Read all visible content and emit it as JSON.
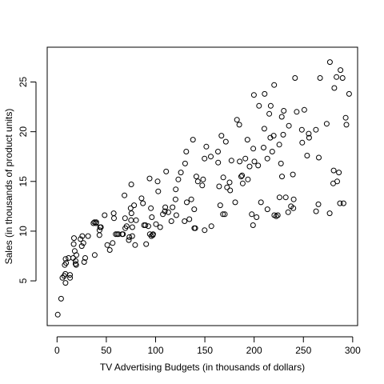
{
  "chart_data": {
    "type": "scatter",
    "title": "",
    "xlabel": "TV Advertising Budgets (in thousands of dollars)",
    "ylabel": "Sales (in thousands of product units)",
    "xlim": [
      -10,
      305
    ],
    "ylim": [
      0.5,
      28.5
    ],
    "x_ticks": [
      0,
      50,
      100,
      150,
      200,
      250,
      300
    ],
    "y_ticks": [
      5,
      10,
      15,
      20,
      25
    ],
    "grid": false,
    "legend": "none",
    "marker": "open-circle",
    "marker_color": "#000000",
    "points": [
      [
        0.7,
        1.6
      ],
      [
        4.1,
        3.2
      ],
      [
        5.4,
        5.3
      ],
      [
        7.3,
        5.5
      ],
      [
        8.4,
        5.7
      ],
      [
        8.6,
        4.8
      ],
      [
        8.7,
        7.2
      ],
      [
        7.8,
        6.6
      ],
      [
        11.7,
        7.3
      ],
      [
        13.1,
        5.6
      ],
      [
        13.2,
        5.3
      ],
      [
        16.9,
        8.7
      ],
      [
        17.2,
        9.3
      ],
      [
        17.9,
        8.0
      ],
      [
        18.7,
        6.7
      ],
      [
        18.8,
        7.0
      ],
      [
        19.4,
        6.6
      ],
      [
        19.6,
        7.6
      ],
      [
        23.8,
        9.2
      ],
      [
        25.1,
        8.5
      ],
      [
        25.6,
        9.5
      ],
      [
        26.8,
        8.8
      ],
      [
        27.5,
        6.9
      ],
      [
        28.6,
        7.3
      ],
      [
        31.5,
        9.5
      ],
      [
        36.9,
        10.8
      ],
      [
        38.0,
        10.9
      ],
      [
        38.2,
        7.6
      ],
      [
        39.5,
        10.8
      ],
      [
        43.0,
        9.6
      ],
      [
        43.1,
        10.1
      ],
      [
        43.7,
        10.4
      ],
      [
        44.5,
        10.4
      ],
      [
        48.3,
        11.6
      ],
      [
        53.5,
        8.1
      ],
      [
        57.5,
        11.8
      ],
      [
        59.6,
        9.7
      ],
      [
        62.3,
        9.7
      ],
      [
        66.1,
        9.7
      ],
      [
        66.9,
        9.7
      ],
      [
        68.4,
        13.6
      ],
      [
        69.0,
        11.3
      ],
      [
        69.2,
        10.3
      ],
      [
        70.6,
        10.5
      ],
      [
        73.4,
        9.4
      ],
      [
        74.7,
        12.3
      ],
      [
        75.1,
        11.1
      ],
      [
        75.3,
        14.7
      ],
      [
        75.5,
        11.8
      ],
      [
        76.3,
        9.5
      ],
      [
        76.4,
        10.4
      ],
      [
        78.2,
        12.6
      ],
      [
        79.2,
        8.6
      ],
      [
        80.2,
        11.1
      ],
      [
        85.7,
        13.3
      ],
      [
        87.2,
        12.8
      ],
      [
        88.3,
        10.6
      ],
      [
        89.7,
        10.6
      ],
      [
        90.4,
        8.7
      ],
      [
        93.9,
        15.3
      ],
      [
        94.2,
        9.7
      ],
      [
        95.7,
        9.5
      ],
      [
        96.2,
        11.4
      ],
      [
        97.2,
        9.6
      ],
      [
        97.5,
        9.7
      ],
      [
        100.4,
        10.7
      ],
      [
        102.7,
        14.0
      ],
      [
        104.6,
        10.4
      ],
      [
        107.4,
        11.7
      ],
      [
        109.8,
        12.4
      ],
      [
        110.7,
        16.0
      ],
      [
        112.9,
        11.9
      ],
      [
        116.0,
        11.0
      ],
      [
        117.2,
        12.4
      ],
      [
        120.2,
        13.2
      ],
      [
        120.5,
        14.2
      ],
      [
        121.0,
        11.6
      ],
      [
        123.1,
        15.2
      ],
      [
        125.7,
        15.9
      ],
      [
        129.4,
        11.0
      ],
      [
        131.1,
        18.0
      ],
      [
        131.7,
        12.9
      ],
      [
        134.3,
        11.2
      ],
      [
        136.2,
        13.2
      ],
      [
        137.9,
        19.2
      ],
      [
        139.2,
        12.2
      ],
      [
        139.3,
        10.3
      ],
      [
        140.3,
        10.3
      ],
      [
        141.3,
        15.5
      ],
      [
        142.9,
        15.0
      ],
      [
        147.3,
        14.6
      ],
      [
        149.7,
        17.3
      ],
      [
        149.8,
        10.1
      ],
      [
        151.5,
        18.5
      ],
      [
        156.6,
        10.5
      ],
      [
        163.3,
        18.0
      ],
      [
        163.5,
        16.9
      ],
      [
        164.5,
        14.5
      ],
      [
        165.6,
        12.6
      ],
      [
        166.8,
        19.6
      ],
      [
        168.4,
        11.7
      ],
      [
        170.2,
        11.7
      ],
      [
        171.3,
        19.0
      ],
      [
        172.5,
        14.4
      ],
      [
        175.1,
        14.9
      ],
      [
        175.7,
        14.1
      ],
      [
        177.0,
        17.1
      ],
      [
        180.8,
        12.9
      ],
      [
        182.6,
        21.2
      ],
      [
        184.9,
        20.7
      ],
      [
        186.9,
        15.5
      ],
      [
        187.8,
        15.6
      ],
      [
        188.4,
        14.8
      ],
      [
        191.1,
        17.3
      ],
      [
        193.2,
        19.2
      ],
      [
        193.7,
        15.2
      ],
      [
        195.4,
        16.5
      ],
      [
        197.6,
        11.7
      ],
      [
        198.9,
        10.6
      ],
      [
        199.1,
        18.3
      ],
      [
        199.8,
        23.7
      ],
      [
        202.5,
        11.4
      ],
      [
        204.1,
        16.6
      ],
      [
        205.0,
        22.6
      ],
      [
        206.9,
        12.9
      ],
      [
        209.6,
        18.4
      ],
      [
        210.7,
        23.8
      ],
      [
        213.4,
        17.3
      ],
      [
        213.5,
        12.2
      ],
      [
        215.4,
        21.8
      ],
      [
        216.4,
        19.4
      ],
      [
        216.8,
        22.6
      ],
      [
        218.4,
        18.0
      ],
      [
        219.8,
        19.6
      ],
      [
        220.3,
        24.7
      ],
      [
        220.5,
        11.6
      ],
      [
        222.4,
        11.5
      ],
      [
        224.0,
        11.6
      ],
      [
        225.8,
        13.4
      ],
      [
        227.2,
        16.8
      ],
      [
        228.0,
        21.5
      ],
      [
        228.3,
        15.5
      ],
      [
        229.5,
        19.7
      ],
      [
        230.1,
        22.1
      ],
      [
        232.1,
        13.4
      ],
      [
        234.5,
        11.9
      ],
      [
        237.4,
        12.5
      ],
      [
        239.3,
        15.7
      ],
      [
        239.8,
        12.3
      ],
      [
        240.1,
        13.2
      ],
      [
        243.2,
        22.0
      ],
      [
        248.4,
        20.2
      ],
      [
        248.8,
        18.9
      ],
      [
        250.9,
        22.2
      ],
      [
        253.8,
        17.6
      ],
      [
        255.4,
        19.8
      ],
      [
        262.7,
        20.2
      ],
      [
        262.9,
        12.0
      ],
      [
        265.2,
        12.7
      ],
      [
        265.6,
        17.4
      ],
      [
        266.9,
        25.4
      ],
      [
        273.7,
        20.8
      ],
      [
        276.7,
        11.8
      ],
      [
        276.9,
        27.0
      ],
      [
        280.2,
        14.8
      ],
      [
        280.7,
        16.1
      ],
      [
        281.4,
        24.4
      ],
      [
        283.6,
        25.5
      ],
      [
        284.3,
        15.0
      ],
      [
        286.0,
        15.9
      ],
      [
        287.6,
        26.2
      ],
      [
        289.7,
        25.4
      ],
      [
        290.7,
        12.8
      ],
      [
        292.9,
        21.4
      ],
      [
        293.6,
        20.7
      ],
      [
        296.4,
        23.8
      ],
      [
        9.2,
        6.8
      ],
      [
        16.3,
        7.3
      ],
      [
        39.8,
        10.9
      ],
      [
        51.0,
        8.6
      ],
      [
        56.4,
        8.8
      ],
      [
        57.8,
        11.3
      ],
      [
        61.0,
        9.7
      ],
      [
        72.8,
        9.1
      ],
      [
        92.6,
        10.5
      ],
      [
        95.2,
        12.3
      ],
      [
        102.0,
        15.0
      ],
      [
        109.4,
        12.0
      ],
      [
        130.0,
        16.8
      ],
      [
        148.2,
        15.2
      ],
      [
        156.0,
        17.5
      ],
      [
        168.7,
        15.4
      ],
      [
        185.3,
        17.0
      ],
      [
        200.3,
        17.0
      ],
      [
        210.3,
        20.3
      ],
      [
        225.5,
        18.7
      ],
      [
        235.3,
        20.6
      ],
      [
        241.5,
        25.4
      ],
      [
        255.8,
        19.4
      ],
      [
        287.1,
        12.8
      ]
    ]
  }
}
